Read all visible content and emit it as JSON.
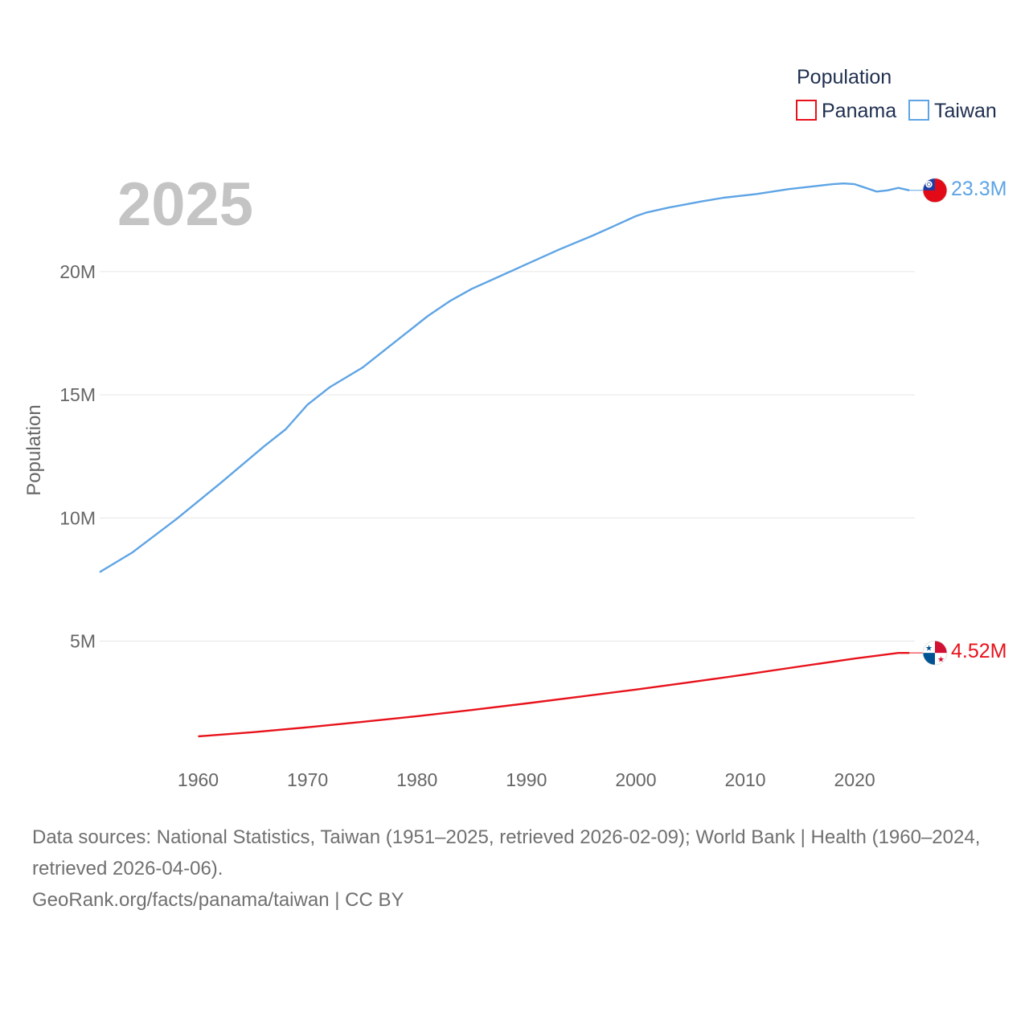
{
  "chart_data": {
    "type": "line",
    "title": "",
    "year_label": "2025",
    "ylabel": "Population",
    "xlim": [
      1951,
      2025.5
    ],
    "ylim": [
      1000000,
      24500000
    ],
    "x_ticks": [
      1960,
      1970,
      1980,
      1990,
      2000,
      2010,
      2020
    ],
    "y_ticks": [
      {
        "value": 5000000,
        "label": "5M"
      },
      {
        "value": 10000000,
        "label": "10M"
      },
      {
        "value": 15000000,
        "label": "15M"
      },
      {
        "value": 20000000,
        "label": "20M"
      }
    ],
    "legend": {
      "title": "Population",
      "position": "top-right"
    },
    "series": [
      {
        "name": "Panama",
        "color": "#e8121b",
        "end_label": "4.52M",
        "flag": "panama-flag",
        "points": [
          [
            1960,
            1130000
          ],
          [
            1965,
            1300000
          ],
          [
            1970,
            1500000
          ],
          [
            1975,
            1720000
          ],
          [
            1980,
            1950000
          ],
          [
            1985,
            2200000
          ],
          [
            1990,
            2470000
          ],
          [
            1995,
            2750000
          ],
          [
            2000,
            3030000
          ],
          [
            2005,
            3330000
          ],
          [
            2010,
            3640000
          ],
          [
            2015,
            3970000
          ],
          [
            2020,
            4290000
          ],
          [
            2024,
            4520000
          ],
          [
            2025,
            4520000
          ]
        ]
      },
      {
        "name": "Taiwan",
        "color": "#5ea4e5",
        "end_label": "23.3M",
        "flag": "taiwan-flag",
        "points": [
          [
            1951,
            7800000
          ],
          [
            1954,
            8600000
          ],
          [
            1958,
            9950000
          ],
          [
            1962,
            11400000
          ],
          [
            1966,
            12900000
          ],
          [
            1968,
            13600000
          ],
          [
            1970,
            14600000
          ],
          [
            1972,
            15300000
          ],
          [
            1975,
            16100000
          ],
          [
            1978,
            17150000
          ],
          [
            1981,
            18200000
          ],
          [
            1983,
            18800000
          ],
          [
            1985,
            19300000
          ],
          [
            1987,
            19700000
          ],
          [
            1990,
            20300000
          ],
          [
            1993,
            20900000
          ],
          [
            1996,
            21450000
          ],
          [
            1998,
            21850000
          ],
          [
            2000,
            22250000
          ],
          [
            2001,
            22400000
          ],
          [
            2003,
            22600000
          ],
          [
            2006,
            22850000
          ],
          [
            2008,
            23000000
          ],
          [
            2011,
            23150000
          ],
          [
            2014,
            23350000
          ],
          [
            2017,
            23500000
          ],
          [
            2018,
            23550000
          ],
          [
            2019,
            23580000
          ],
          [
            2020,
            23550000
          ],
          [
            2021,
            23400000
          ],
          [
            2022,
            23250000
          ],
          [
            2023,
            23300000
          ],
          [
            2024,
            23400000
          ],
          [
            2025,
            23300000
          ]
        ]
      }
    ]
  },
  "footer": {
    "sources": "Data sources: National Statistics, Taiwan (1951–2025, retrieved 2026-02-09); World Bank | Health (1960–2024, retrieved 2026-04-06).",
    "attribution": "GeoRank.org/facts/panama/taiwan | CC BY"
  }
}
